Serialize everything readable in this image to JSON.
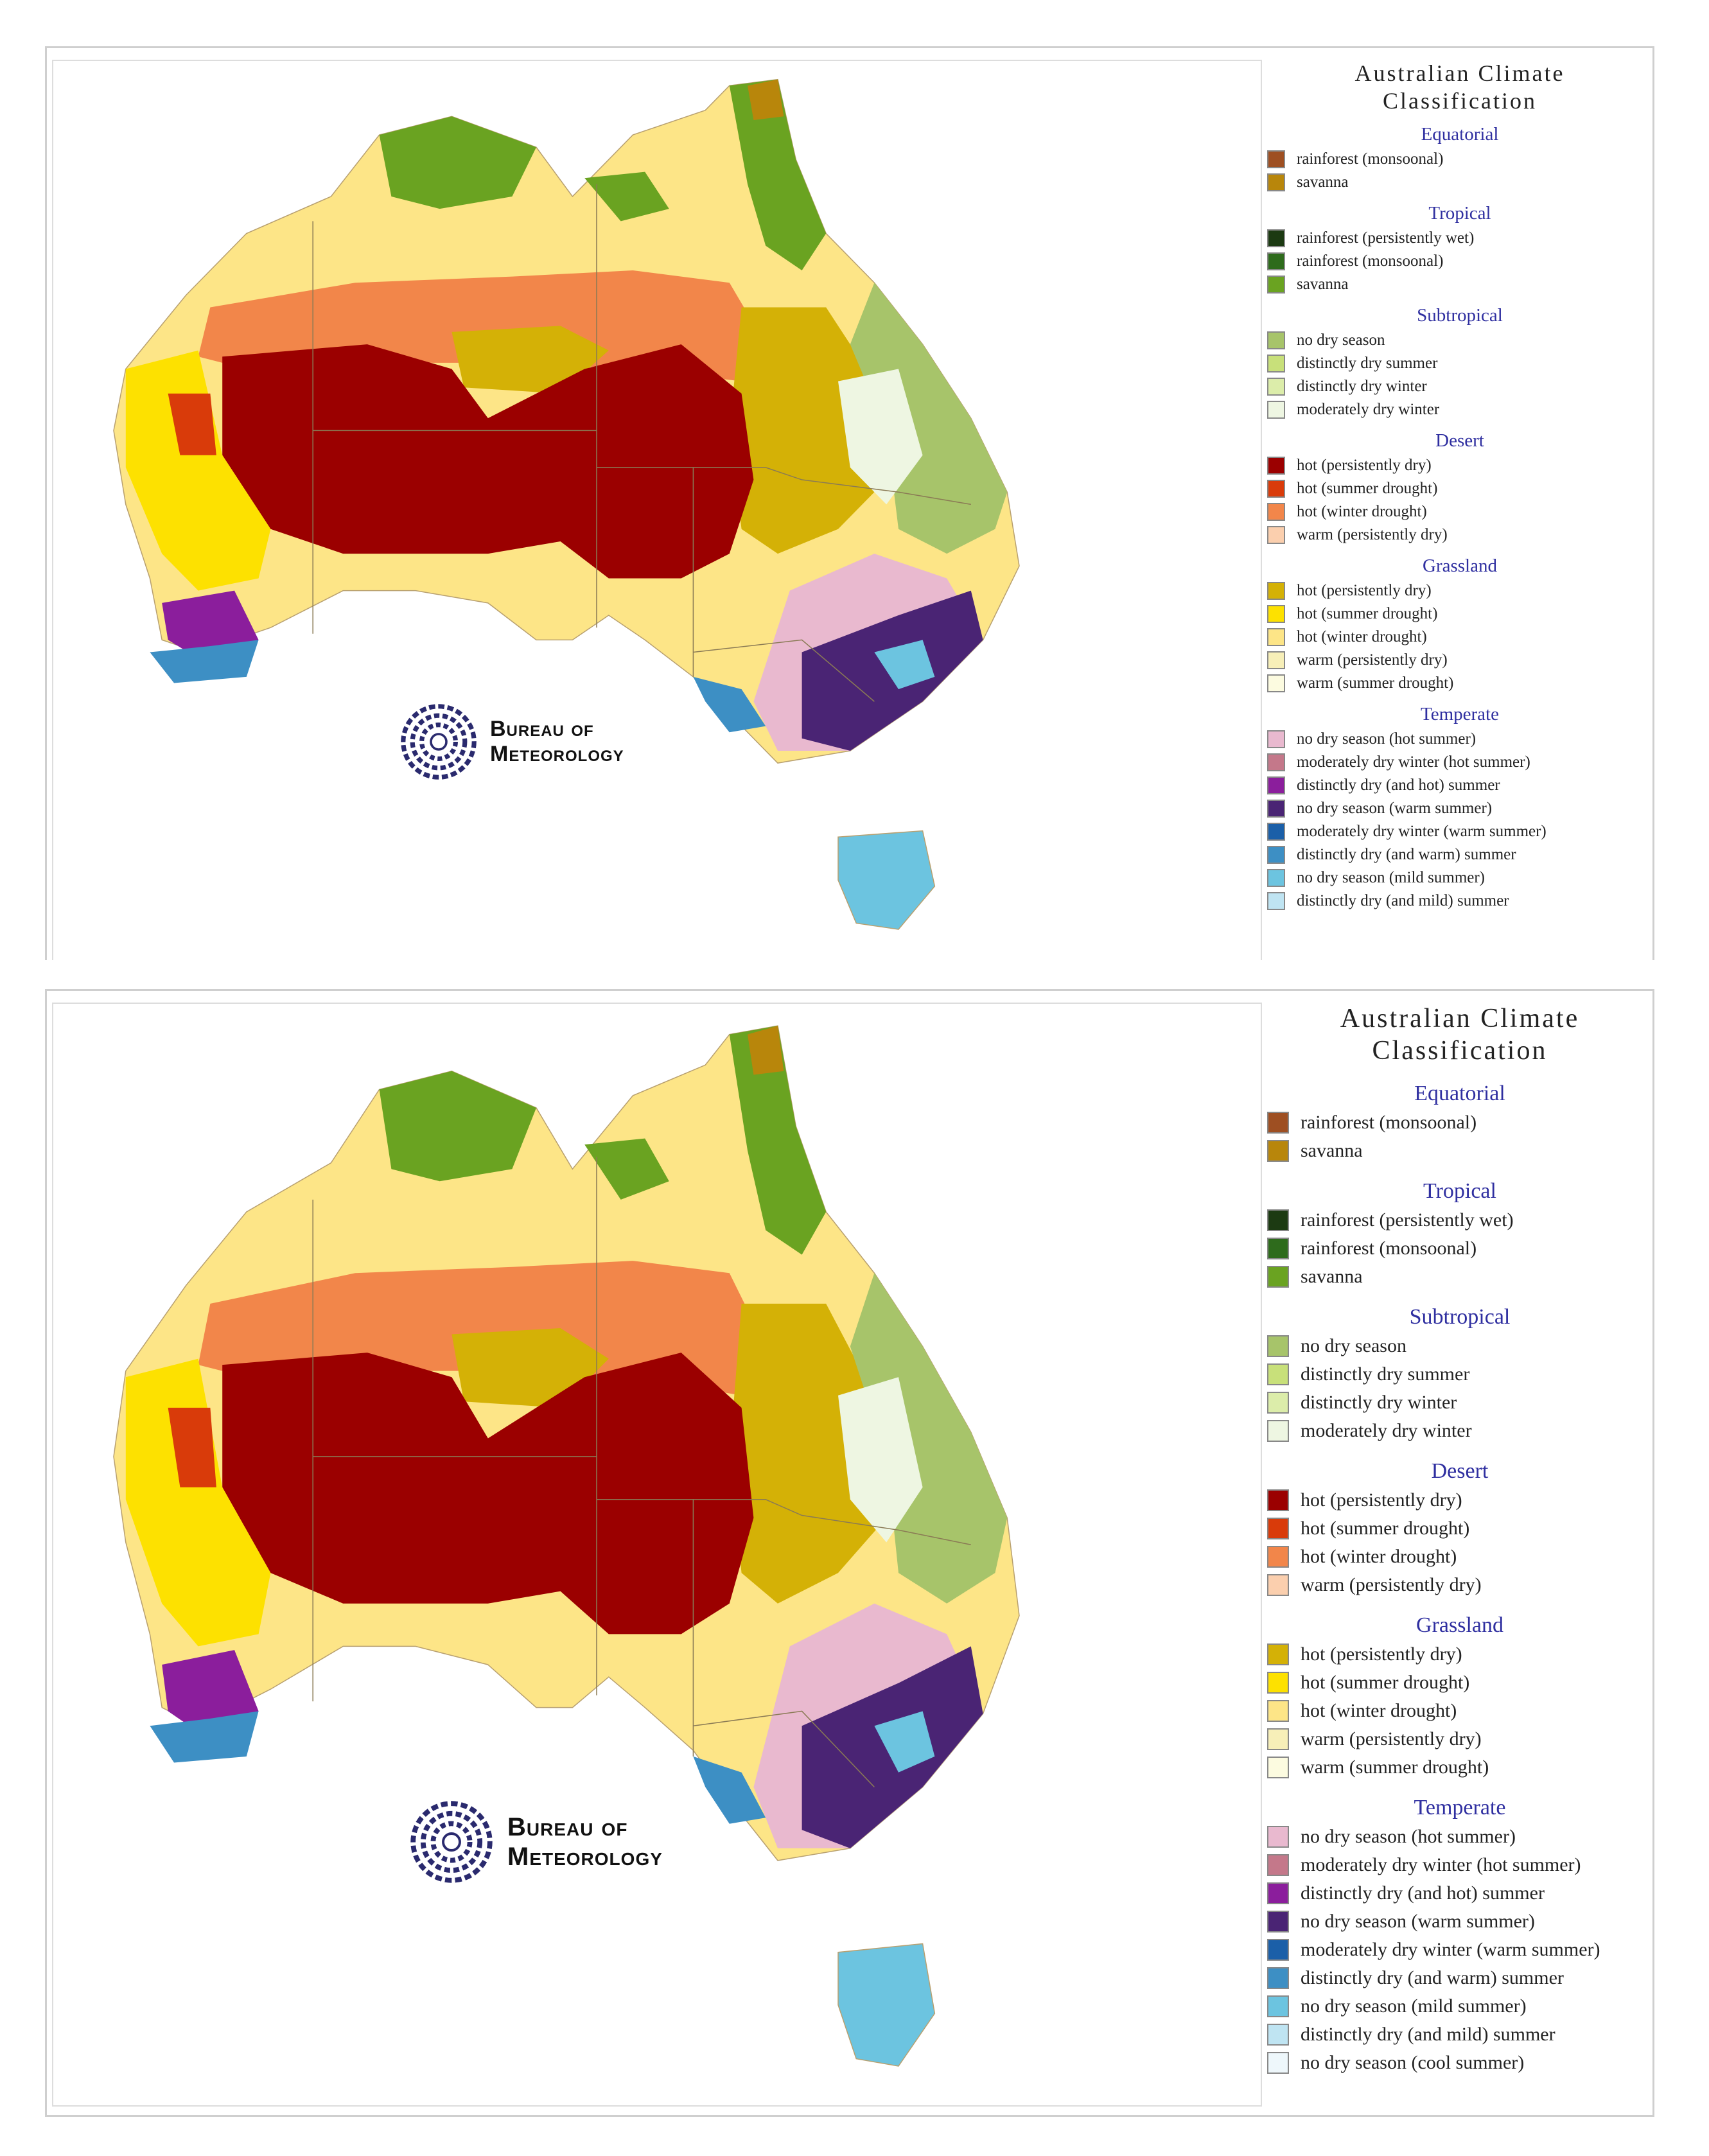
{
  "legend": {
    "title_line1": "Australian Climate",
    "title_line2": "Classification",
    "groups": [
      {
        "name": "Equatorial",
        "items": [
          {
            "label": "rainforest (monsoonal)",
            "color": "#9e4f22"
          },
          {
            "label": "savanna",
            "color": "#b8860b"
          }
        ]
      },
      {
        "name": "Tropical",
        "items": [
          {
            "label": "rainforest (persistently wet)",
            "color": "#1c3a12"
          },
          {
            "label": "rainforest (monsoonal)",
            "color": "#2e6b1c"
          },
          {
            "label": "savanna",
            "color": "#6aa321"
          }
        ]
      },
      {
        "name": "Subtropical",
        "items": [
          {
            "label": "no dry season",
            "color": "#a7c46a"
          },
          {
            "label": "distinctly dry summer",
            "color": "#c8e07a"
          },
          {
            "label": "distinctly dry winter",
            "color": "#dcedaa"
          },
          {
            "label": "moderately dry winter",
            "color": "#eef6e2"
          }
        ]
      },
      {
        "name": "Desert",
        "items": [
          {
            "label": "hot (persistently dry)",
            "color": "#9b0000"
          },
          {
            "label": "hot (summer drought)",
            "color": "#d93b0a"
          },
          {
            "label": "hot (winter drought)",
            "color": "#f2864a"
          },
          {
            "label": "warm (persistently dry)",
            "color": "#fbcfae"
          }
        ]
      },
      {
        "name": "Grassland",
        "items": [
          {
            "label": "hot (persistently dry)",
            "color": "#d4b106"
          },
          {
            "label": "hot (summer drought)",
            "color": "#fde100"
          },
          {
            "label": "hot (winter drought)",
            "color": "#fde587"
          },
          {
            "label": "warm (persistently dry)",
            "color": "#f7efb8"
          },
          {
            "label": "warm (summer drought)",
            "color": "#fcfbe0"
          }
        ]
      },
      {
        "name": "Temperate",
        "items": [
          {
            "label": "no dry season (hot summer)",
            "color": "#e9b9cf"
          },
          {
            "label": "moderately dry winter (hot summer)",
            "color": "#c4788a"
          },
          {
            "label": "distinctly dry (and hot) summer",
            "color": "#8b1e9c"
          },
          {
            "label": "no dry season (warm summer)",
            "color": "#4a2474"
          },
          {
            "label": "moderately dry winter (warm summer)",
            "color": "#1b5fa8"
          },
          {
            "label": "distinctly dry (and warm) summer",
            "color": "#3d8fc4"
          },
          {
            "label": "no dry season (mild summer)",
            "color": "#6cc4e0"
          },
          {
            "label": "distinctly dry (and mild) summer",
            "color": "#bfe4f2"
          },
          {
            "label": "no dry season (cool summer)",
            "color": "#eef7fb"
          }
        ]
      }
    ]
  },
  "logo": {
    "line1": "Bureau of",
    "line2": "Meteorology"
  }
}
